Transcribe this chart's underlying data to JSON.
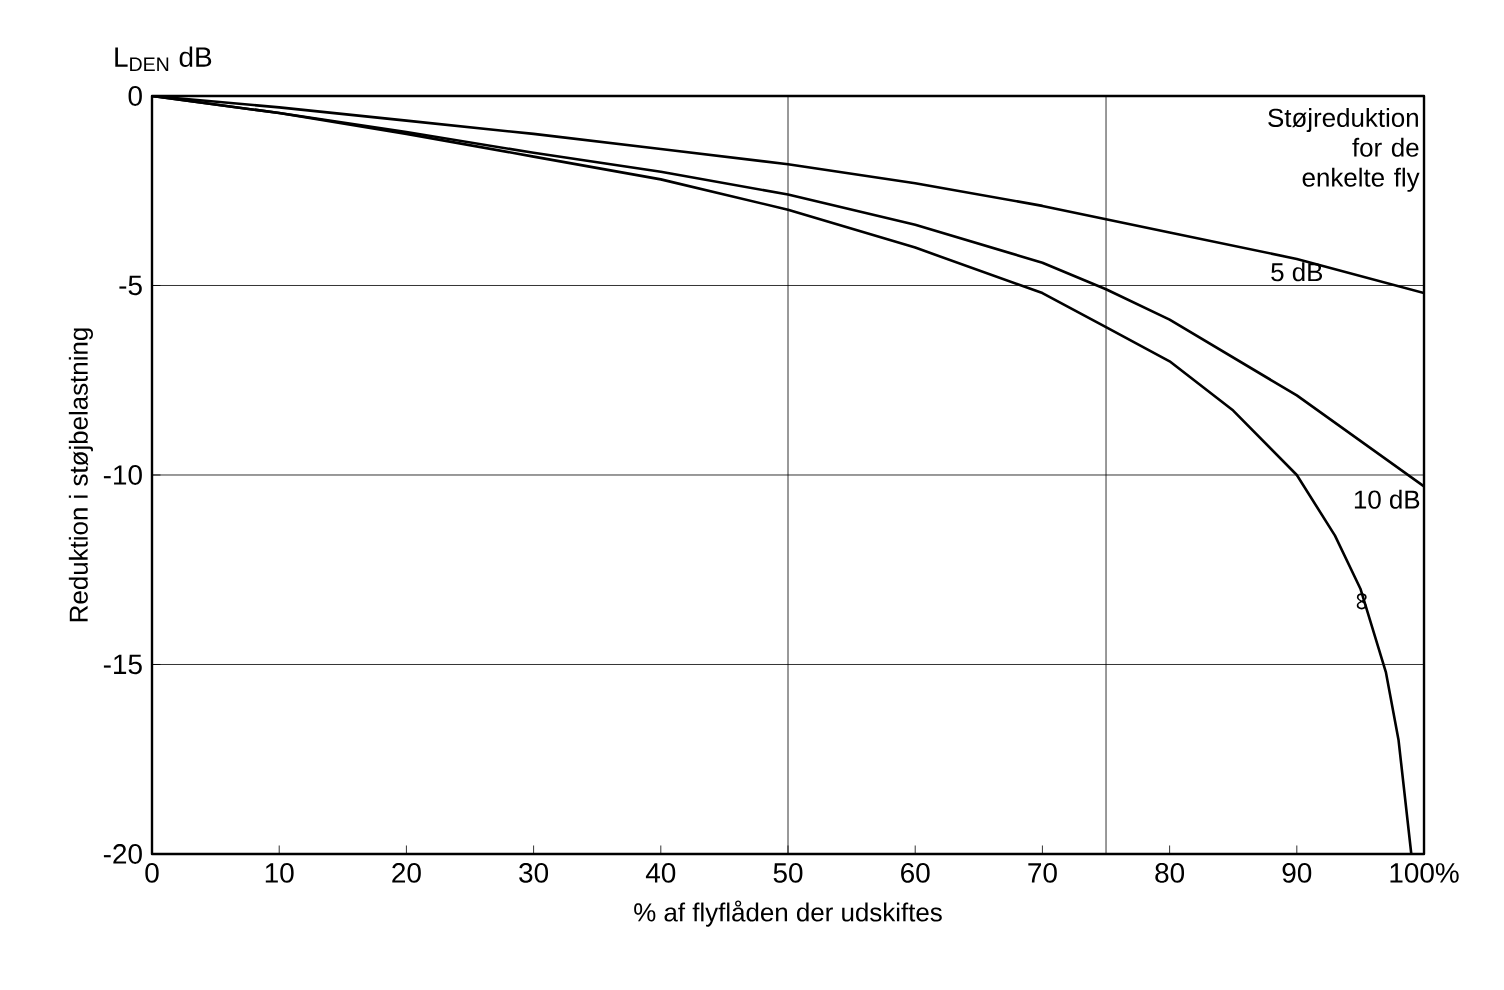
{
  "chart_data": {
    "type": "line",
    "title": "L$_{DEN}$ dB",
    "xlabel": "% af flyflåden der udskiftes",
    "ylabel": "Reduktion i støjbelastning",
    "legend_title": "Støjreduktion for de enkelte fly",
    "xlim": [
      0,
      100
    ],
    "ylim": [
      -20,
      0
    ],
    "xticks": [
      0,
      10,
      20,
      30,
      40,
      50,
      60,
      70,
      80,
      90,
      {
        "value": 100,
        "label": "100%"
      }
    ],
    "yticks": [
      -20,
      -15,
      -10,
      -5,
      0
    ],
    "grid": "y",
    "marker": "none",
    "line_style": "solid",
    "ref_lines": [
      {
        "axis": "x",
        "value": 50
      },
      {
        "axis": "x",
        "value": 75
      }
    ],
    "series": [
      {
        "name": "5 dB",
        "color": "#000000",
        "x": [
          0,
          10,
          20,
          30,
          40,
          50,
          60,
          70,
          80,
          90,
          100
        ],
        "values": [
          0,
          -0.3,
          -0.65,
          -1.0,
          -1.4,
          -1.8,
          -2.3,
          -2.9,
          -3.6,
          -4.3,
          -5.2
        ]
      },
      {
        "name": "10 dB",
        "color": "#000000",
        "x": [
          0,
          10,
          20,
          30,
          40,
          50,
          60,
          70,
          75,
          80,
          90,
          100
        ],
        "values": [
          0,
          -0.45,
          -0.95,
          -1.5,
          -2.0,
          -2.6,
          -3.4,
          -4.4,
          -5.1,
          -5.9,
          -7.9,
          -10.3
        ]
      },
      {
        "name": "∞",
        "color": "#000000",
        "x": [
          0,
          10,
          20,
          30,
          40,
          50,
          60,
          70,
          75,
          80,
          85,
          90,
          93,
          95,
          97,
          98,
          99
        ],
        "values": [
          0,
          -0.45,
          -1.0,
          -1.6,
          -2.2,
          -3.0,
          -4.0,
          -5.2,
          -6.1,
          -7.0,
          -8.3,
          -10.0,
          -11.6,
          -13.0,
          -15.2,
          -17,
          -20
        ]
      }
    ]
  }
}
